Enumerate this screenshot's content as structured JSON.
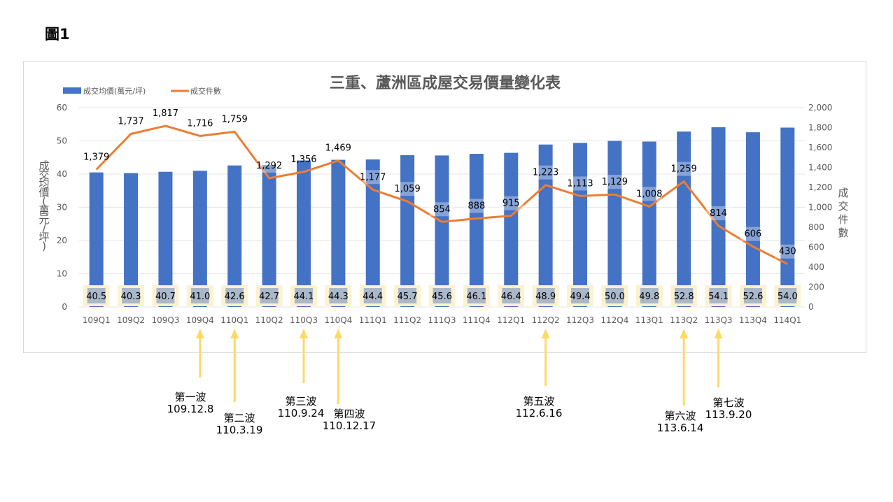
{
  "figure_label": "圖1",
  "chart_data": {
    "type": "bar",
    "title": "三重、蘆洲區成屋交易價量變化表",
    "categories": [
      "109Q1",
      "109Q2",
      "109Q3",
      "109Q4",
      "110Q1",
      "110Q2",
      "110Q3",
      "110Q4",
      "111Q1",
      "111Q2",
      "111Q3",
      "111Q4",
      "112Q1",
      "112Q2",
      "112Q3",
      "112Q4",
      "113Q1",
      "113Q2",
      "113Q3",
      "113Q4",
      "114Q1"
    ],
    "series": [
      {
        "name": "成交均價(萬元/坪)",
        "type": "bar",
        "axis": "left",
        "color": "#4472c4",
        "values": [
          40.5,
          40.3,
          40.7,
          41.0,
          42.6,
          42.7,
          44.1,
          44.3,
          44.4,
          45.7,
          45.6,
          46.1,
          46.4,
          48.9,
          49.4,
          50.0,
          49.8,
          52.8,
          54.1,
          52.6,
          54.0
        ],
        "labels": [
          "40.5",
          "40.3",
          "40.7",
          "41.0",
          "42.6",
          "42.7",
          "44.1",
          "44.3",
          "44.4",
          "45.7",
          "45.6",
          "46.1",
          "46.4",
          "48.9",
          "49.4",
          "50.0",
          "49.8",
          "52.8",
          "54.1",
          "52.6",
          "54.0"
        ]
      },
      {
        "name": "成交件數",
        "type": "line",
        "axis": "right",
        "color": "#ed7d31",
        "values": [
          1379,
          1737,
          1817,
          1716,
          1759,
          1292,
          1356,
          1469,
          1177,
          1059,
          854,
          888,
          915,
          1223,
          1113,
          1129,
          1008,
          1259,
          814,
          606,
          430
        ],
        "labels": [
          "1,379",
          "1,737",
          "1,817",
          "1,716",
          "1,759",
          "1,292",
          "1,356",
          "1,469",
          "1,177",
          "1,059",
          "854",
          "888",
          "915",
          "1,223",
          "1,113",
          "1,129",
          "1,008",
          "1,259",
          "814",
          "606",
          "430"
        ]
      }
    ],
    "ylabel_left": "成交均價(萬元/坪)",
    "ylabel_right": "成交件數",
    "ylim_left": [
      0,
      60
    ],
    "ylim_right": [
      0,
      2000
    ],
    "yticks_left": [
      "0",
      "10",
      "20",
      "30",
      "40",
      "50",
      "60"
    ],
    "yticks_right": [
      "0",
      "200",
      "400",
      "600",
      "800",
      "1,000",
      "1,200",
      "1,400",
      "1,600",
      "1,800",
      "2,000"
    ],
    "legend_position": "top-left",
    "grid": true
  },
  "waves": [
    {
      "category": "109Q4",
      "name": "第一波",
      "date": "109.12.8"
    },
    {
      "category": "110Q1",
      "name": "第二波",
      "date": "110.3.19"
    },
    {
      "category": "110Q3",
      "name": "第三波",
      "date": "110.9.24"
    },
    {
      "category": "110Q4",
      "name": "第四波",
      "date": "110.12.17"
    },
    {
      "category": "112Q2",
      "name": "第五波",
      "date": "112.6.16"
    },
    {
      "category": "113Q2",
      "name": "第六波",
      "date": "113.6.14"
    },
    {
      "category": "113Q3",
      "name": "第七波",
      "date": "113.9.20"
    }
  ]
}
